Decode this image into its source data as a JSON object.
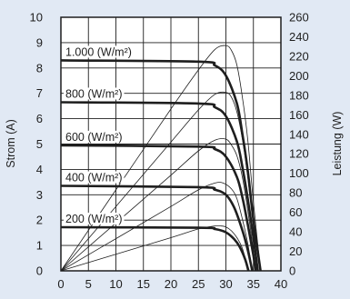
{
  "chart_data": {
    "type": "line",
    "title": "",
    "xlabel": "",
    "ylabel_left": "Strom (A)",
    "ylabel_right": "Leistung (W)",
    "xlim": [
      0,
      40
    ],
    "ylim_left": [
      0,
      10
    ],
    "ylim_right": [
      0,
      260
    ],
    "x_ticks": [
      0,
      5,
      10,
      15,
      20,
      25,
      30,
      35,
      40
    ],
    "y_left_ticks": [
      0,
      1,
      2,
      3,
      4,
      5,
      6,
      7,
      8,
      9,
      10
    ],
    "y_right_ticks": [
      0,
      20,
      40,
      60,
      80,
      100,
      120,
      140,
      160,
      180,
      200,
      220,
      240,
      260
    ],
    "grid": true,
    "series": [
      {
        "name": "1.000 (W/m²)",
        "current_curve": [
          [
            0,
            8.3
          ],
          [
            25,
            8.25
          ],
          [
            28,
            8.1
          ],
          [
            30,
            7.7
          ],
          [
            32,
            6.6
          ],
          [
            33,
            5.4
          ],
          [
            34,
            3.9
          ],
          [
            35,
            2.0
          ],
          [
            36.3,
            0
          ]
        ],
        "power_curve_w": [
          [
            0,
            0
          ],
          [
            10,
            83
          ],
          [
            20,
            166
          ],
          [
            25,
            206
          ],
          [
            28,
            227
          ],
          [
            30,
            231
          ],
          [
            31,
            226
          ],
          [
            32,
            211
          ],
          [
            33,
            178
          ],
          [
            34,
            133
          ],
          [
            35,
            70
          ],
          [
            36.3,
            0
          ]
        ]
      },
      {
        "name": "800 (W/m²)",
        "current_curve": [
          [
            0,
            6.65
          ],
          [
            25,
            6.6
          ],
          [
            28,
            6.45
          ],
          [
            30,
            6.1
          ],
          [
            32,
            5.1
          ],
          [
            33,
            4.1
          ],
          [
            34,
            2.8
          ],
          [
            35,
            1.3
          ],
          [
            35.8,
            0
          ]
        ],
        "power_curve_w": [
          [
            0,
            0
          ],
          [
            10,
            66
          ],
          [
            20,
            132
          ],
          [
            25,
            165
          ],
          [
            28,
            181
          ],
          [
            30,
            183
          ],
          [
            31,
            178
          ],
          [
            32,
            163
          ],
          [
            33,
            135
          ],
          [
            34,
            95
          ],
          [
            35,
            46
          ],
          [
            35.8,
            0
          ]
        ]
      },
      {
        "name": "600 (W/m²)",
        "current_curve": [
          [
            0,
            4.95
          ],
          [
            25,
            4.9
          ],
          [
            28,
            4.8
          ],
          [
            30,
            4.5
          ],
          [
            32,
            3.7
          ],
          [
            33,
            2.9
          ],
          [
            34,
            1.8
          ],
          [
            35,
            0.6
          ],
          [
            35.4,
            0
          ]
        ],
        "power_curve_w": [
          [
            0,
            0
          ],
          [
            10,
            49
          ],
          [
            20,
            98
          ],
          [
            25,
            123
          ],
          [
            28,
            134
          ],
          [
            30,
            135
          ],
          [
            31,
            129
          ],
          [
            32,
            118
          ],
          [
            33,
            96
          ],
          [
            34,
            61
          ],
          [
            35,
            21
          ],
          [
            35.4,
            0
          ]
        ]
      },
      {
        "name": "400 (W/m²)",
        "current_curve": [
          [
            0,
            3.35
          ],
          [
            25,
            3.3
          ],
          [
            28,
            3.2
          ],
          [
            30,
            3.0
          ],
          [
            31.5,
            2.5
          ],
          [
            33,
            1.6
          ],
          [
            34,
            0.8
          ],
          [
            34.8,
            0
          ]
        ],
        "power_curve_w": [
          [
            0,
            0
          ],
          [
            10,
            33
          ],
          [
            20,
            66
          ],
          [
            25,
            83
          ],
          [
            28,
            90
          ],
          [
            29.5,
            90
          ],
          [
            31,
            84
          ],
          [
            32,
            74
          ],
          [
            33,
            53
          ],
          [
            34,
            27
          ],
          [
            34.8,
            0
          ]
        ]
      },
      {
        "name": "200 (W/m²)",
        "current_curve": [
          [
            0,
            1.72
          ],
          [
            25,
            1.7
          ],
          [
            28,
            1.65
          ],
          [
            30,
            1.52
          ],
          [
            31.5,
            1.25
          ],
          [
            32.5,
            0.95
          ],
          [
            33.5,
            0.45
          ],
          [
            34.1,
            0
          ]
        ],
        "power_curve_w": [
          [
            0,
            0
          ],
          [
            10,
            17
          ],
          [
            20,
            34
          ],
          [
            25,
            43
          ],
          [
            28,
            46
          ],
          [
            29,
            46
          ],
          [
            30,
            45
          ],
          [
            31,
            41
          ],
          [
            32,
            34
          ],
          [
            33,
            23
          ],
          [
            34.1,
            0
          ]
        ]
      }
    ],
    "labels": [
      "1.000 (W/m²)",
      "800 (W/m²)",
      "600 (W/m²)",
      "400 (W/m²)",
      "200 (W/m²)"
    ]
  }
}
